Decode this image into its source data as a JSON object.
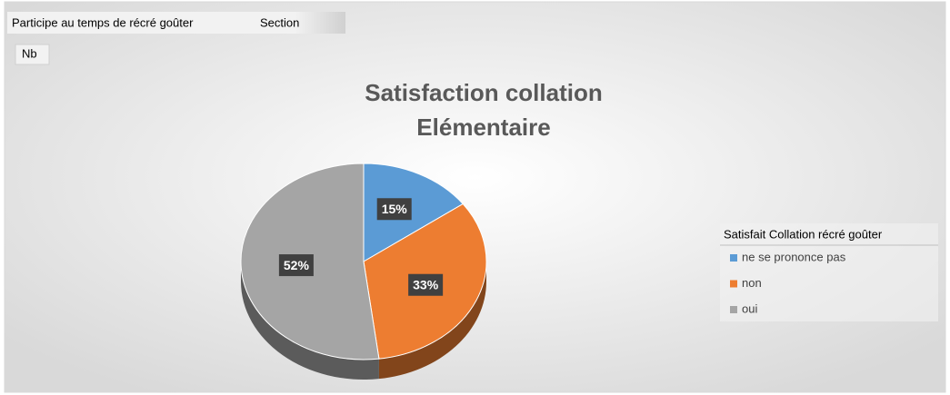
{
  "field_buttons": {
    "filter": "Participe au temps de récré goûter",
    "column": "Section",
    "values": "Nb"
  },
  "chart_data": {
    "type": "pie",
    "title": [
      "Satisfaction collation",
      "Elémentaire"
    ],
    "legend_title": "Satisfait Collation récré goûter",
    "legend": "right",
    "categories": [
      "ne se prononce pas",
      "non",
      "oui"
    ],
    "values": [
      15,
      33,
      52
    ],
    "value_labels": [
      "15%",
      "33%",
      "52%"
    ],
    "colors": [
      "#5b9bd5",
      "#ed7d31",
      "#a5a5a5"
    ]
  }
}
